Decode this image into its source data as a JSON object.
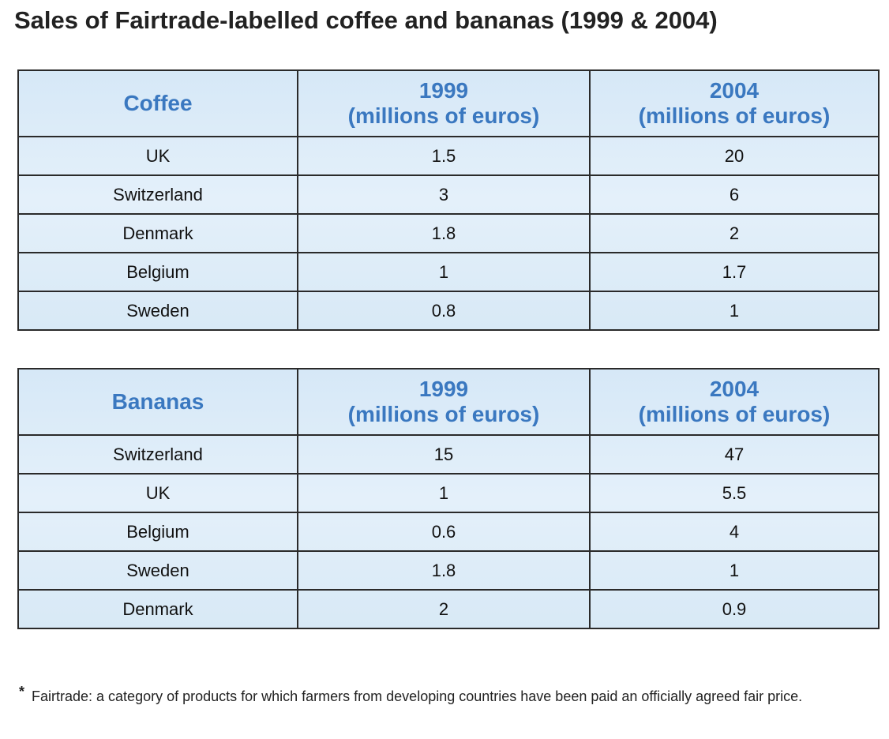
{
  "title": "Sales of Fairtrade-labelled coffee and bananas (1999 & 2004)",
  "tables": [
    {
      "header": {
        "label": "Coffee",
        "columns": [
          {
            "year": "1999",
            "unit": "(millions of euros)"
          },
          {
            "year": "2004",
            "unit": "(millions of euros)"
          }
        ]
      },
      "rows": [
        [
          "UK",
          "1.5",
          "20"
        ],
        [
          "Switzerland",
          "3",
          "6"
        ],
        [
          "Denmark",
          "1.8",
          "2"
        ],
        [
          "Belgium",
          "1",
          "1.7"
        ],
        [
          "Sweden",
          "0.8",
          "1"
        ]
      ]
    },
    {
      "header": {
        "label": "Bananas",
        "columns": [
          {
            "year": "1999",
            "unit": "(millions of euros)"
          },
          {
            "year": "2004",
            "unit": "(millions of euros)"
          }
        ]
      },
      "rows": [
        [
          "Switzerland",
          "15",
          "47"
        ],
        [
          "UK",
          "1",
          "5.5"
        ],
        [
          "Belgium",
          "0.6",
          "4"
        ],
        [
          "Sweden",
          "1.8",
          "1"
        ],
        [
          "Denmark",
          "2",
          "0.9"
        ]
      ]
    }
  ],
  "footnote": {
    "marker": "*",
    "text": "Fairtrade: a category of products for which farmers from developing countries have been paid an officially agreed fair price."
  }
}
